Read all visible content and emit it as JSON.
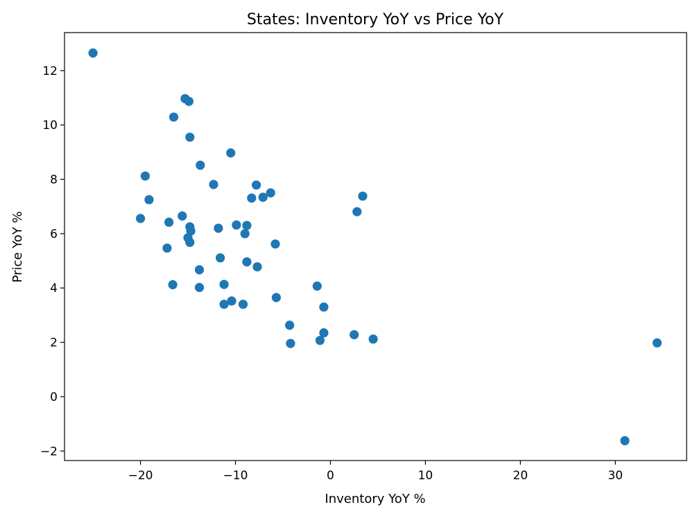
{
  "chart_data": {
    "type": "scatter",
    "title": "States: Inventory YoY vs Price YoY",
    "xlabel": "Inventory YoY %",
    "ylabel": "Price YoY %",
    "xlim": [
      -28,
      37.5
    ],
    "ylim": [
      -2.35,
      13.4
    ],
    "xticks": [
      -20,
      -10,
      0,
      10,
      20,
      30
    ],
    "yticks": [
      -2,
      0,
      2,
      4,
      6,
      8,
      10,
      12
    ],
    "xtick_labels": [
      "−20",
      "−10",
      "0",
      "10",
      "20",
      "30"
    ],
    "ytick_labels": [
      "−2",
      "0",
      "2",
      "4",
      "6",
      "8",
      "10",
      "12"
    ],
    "grid": false,
    "marker_color": "#1f77b4",
    "points": [
      {
        "x": -25.0,
        "y": 12.65
      },
      {
        "x": -15.3,
        "y": 10.97
      },
      {
        "x": -14.9,
        "y": 10.87
      },
      {
        "x": -16.5,
        "y": 10.29
      },
      {
        "x": -14.8,
        "y": 9.55
      },
      {
        "x": -10.5,
        "y": 8.97
      },
      {
        "x": -13.7,
        "y": 8.52
      },
      {
        "x": -19.5,
        "y": 8.12
      },
      {
        "x": -12.3,
        "y": 7.81
      },
      {
        "x": -7.8,
        "y": 7.79
      },
      {
        "x": -6.3,
        "y": 7.5
      },
      {
        "x": 3.4,
        "y": 7.38
      },
      {
        "x": -7.1,
        "y": 7.34
      },
      {
        "x": -8.3,
        "y": 7.31
      },
      {
        "x": -19.1,
        "y": 7.25
      },
      {
        "x": 2.8,
        "y": 6.81
      },
      {
        "x": -15.6,
        "y": 6.65
      },
      {
        "x": -20.0,
        "y": 6.56
      },
      {
        "x": -17.0,
        "y": 6.42
      },
      {
        "x": -9.9,
        "y": 6.32
      },
      {
        "x": -8.8,
        "y": 6.3
      },
      {
        "x": -14.8,
        "y": 6.25
      },
      {
        "x": -11.8,
        "y": 6.2
      },
      {
        "x": -14.7,
        "y": 6.1
      },
      {
        "x": -9.0,
        "y": 6.0
      },
      {
        "x": -15.0,
        "y": 5.85
      },
      {
        "x": -14.8,
        "y": 5.68
      },
      {
        "x": -5.8,
        "y": 5.62
      },
      {
        "x": -17.2,
        "y": 5.47
      },
      {
        "x": -11.6,
        "y": 5.11
      },
      {
        "x": -8.8,
        "y": 4.96
      },
      {
        "x": -7.7,
        "y": 4.78
      },
      {
        "x": -13.8,
        "y": 4.67
      },
      {
        "x": -16.6,
        "y": 4.12
      },
      {
        "x": -11.2,
        "y": 4.13
      },
      {
        "x": -1.4,
        "y": 4.07
      },
      {
        "x": -13.8,
        "y": 4.02
      },
      {
        "x": -5.7,
        "y": 3.65
      },
      {
        "x": -10.4,
        "y": 3.52
      },
      {
        "x": -11.2,
        "y": 3.4
      },
      {
        "x": -9.2,
        "y": 3.4
      },
      {
        "x": -0.7,
        "y": 3.3
      },
      {
        "x": -4.3,
        "y": 2.63
      },
      {
        "x": -0.7,
        "y": 2.35
      },
      {
        "x": 2.5,
        "y": 2.28
      },
      {
        "x": 4.5,
        "y": 2.12
      },
      {
        "x": -1.1,
        "y": 2.07
      },
      {
        "x": -4.2,
        "y": 1.96
      },
      {
        "x": 34.4,
        "y": 1.98
      },
      {
        "x": 31.0,
        "y": -1.62
      }
    ]
  }
}
